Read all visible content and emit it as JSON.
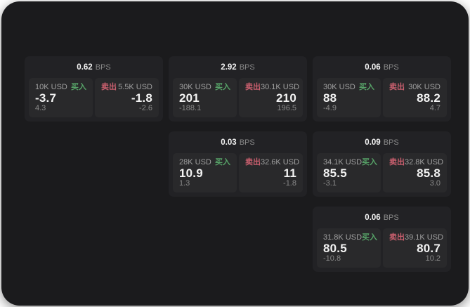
{
  "theme": {
    "page_bg": "#ffffff",
    "panel_bg": "#1b1b1d",
    "card_bg": "#222225",
    "tile_bg": "#29292b",
    "text_primary": "#f2f2f2",
    "text_muted": "#a0a0a0",
    "text_dim": "#8a8a8a",
    "buy_color": "#57a368",
    "sell_color": "#c95f6e"
  },
  "labels": {
    "bps_suffix": "BPS",
    "buy": "买入",
    "sell": "卖出"
  },
  "cards": [
    {
      "bps": "0.62",
      "buy": {
        "size": "10K USD",
        "price": "-3.7",
        "delta": "4.3"
      },
      "sell": {
        "size": "5.5K USD",
        "price": "-1.8",
        "delta": "-2.6"
      }
    },
    {
      "bps": "2.92",
      "buy": {
        "size": "30K USD",
        "price": "201",
        "delta": "-188.1"
      },
      "sell": {
        "size": "30.1K USD",
        "price": "210",
        "delta": "196.5"
      }
    },
    {
      "bps": "0.06",
      "buy": {
        "size": "30K USD",
        "price": "88",
        "delta": "-4.9"
      },
      "sell": {
        "size": "30K USD",
        "price": "88.2",
        "delta": "4.7"
      }
    },
    {
      "bps": "0.03",
      "buy": {
        "size": "28K USD",
        "price": "10.9",
        "delta": "1.3"
      },
      "sell": {
        "size": "32.6K USD",
        "price": "11",
        "delta": "-1.8"
      }
    },
    {
      "bps": "0.09",
      "buy": {
        "size": "34.1K USD",
        "price": "85.5",
        "delta": "-3.1"
      },
      "sell": {
        "size": "32.8K USD",
        "price": "85.8",
        "delta": "3.0"
      }
    },
    {
      "bps": "0.06",
      "buy": {
        "size": "31.8K USD",
        "price": "80.5",
        "delta": "-10.8"
      },
      "sell": {
        "size": "39.1K USD",
        "price": "80.7",
        "delta": "10.2"
      }
    }
  ]
}
